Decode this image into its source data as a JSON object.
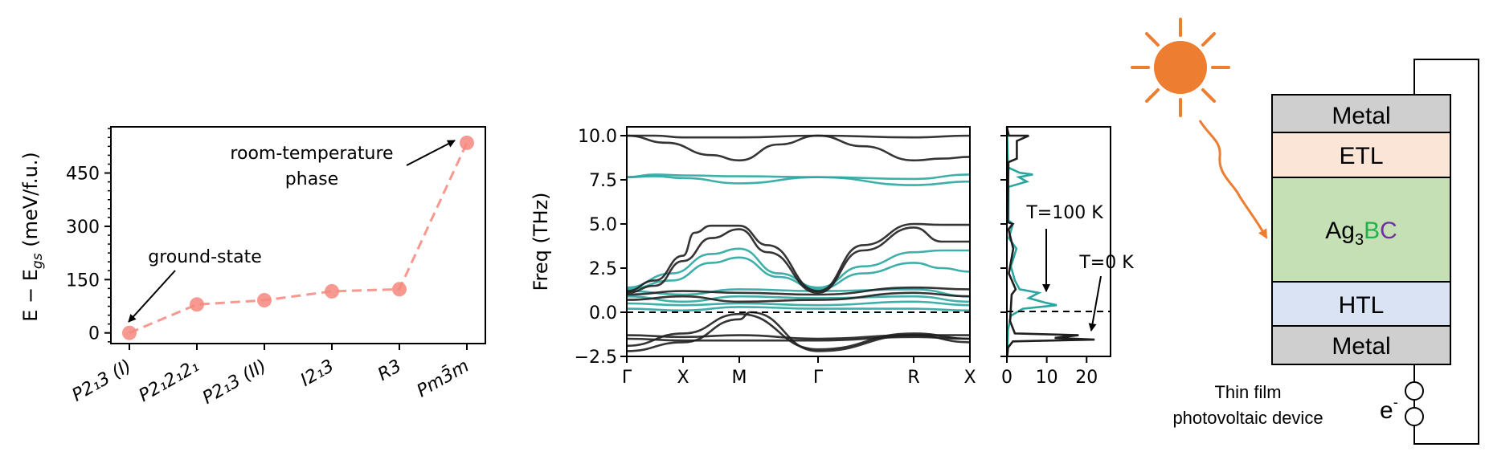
{
  "chart_data": [
    {
      "type": "line",
      "categories": [
        "P2₁3 (I)",
        "P2₁2₁2₁",
        "P2₁3 (II)",
        "I2₁3",
        "R3",
        "Pm3̄m"
      ],
      "values": [
        0,
        80,
        92,
        117,
        123,
        535
      ],
      "ylabel": "E − E_gs (meV/f.u.)",
      "ylabel_parts": {
        "main": "E − E",
        "sub": "gs",
        "unit": " (meV/f.u.)"
      },
      "ylim": [
        -30,
        580
      ],
      "yticks": [
        "0",
        "150",
        "300",
        "450"
      ],
      "ytick_values": [
        0,
        150,
        300,
        450
      ],
      "line_color": "#f4877c",
      "annotations": [
        {
          "text": "ground-state"
        },
        {
          "text_lines": [
            "room-temperature",
            "phase"
          ]
        }
      ]
    },
    {
      "type": "line",
      "ylabel": "Freq (THz)",
      "ylim": [
        -2.5,
        10.5
      ],
      "yticks": [
        "−2.5",
        "0.0",
        "2.5",
        "5.0",
        "7.5",
        "10.0"
      ],
      "ytick_values": [
        -2.5,
        0,
        2.5,
        5,
        7.5,
        10
      ],
      "xticks": [
        "Γ",
        "X",
        "M",
        "Γ",
        "R",
        "X"
      ],
      "xtick_positions": [
        0,
        1,
        2,
        3.4,
        5.1,
        6.1
      ],
      "colors": {
        "T=0 K": "#1f1f1f",
        "T=100 K": "#2aa6a0"
      },
      "series": [
        {
          "temp": "T=100 K",
          "values": [
            [
              0,
              7.65
            ],
            [
              0.5,
              7.8
            ],
            [
              1,
              7.75
            ],
            [
              2,
              7.7
            ],
            [
              3.4,
              7.65
            ],
            [
              5.1,
              7.55
            ],
            [
              6.1,
              7.8
            ]
          ]
        },
        {
          "temp": "T=100 K",
          "values": [
            [
              0,
              7.65
            ],
            [
              0.5,
              7.7
            ],
            [
              1,
              7.6
            ],
            [
              2,
              7.3
            ],
            [
              3.4,
              7.65
            ],
            [
              5.1,
              7.2
            ],
            [
              6.1,
              7.4
            ]
          ]
        },
        {
          "temp": "T=100 K",
          "values": [
            [
              0,
              1.4
            ],
            [
              0.8,
              2.2
            ],
            [
              1.5,
              3.3
            ],
            [
              2,
              3.6
            ],
            [
              2.7,
              2.2
            ],
            [
              3.4,
              1.4
            ],
            [
              4.2,
              2.6
            ],
            [
              5.1,
              3.4
            ],
            [
              5.6,
              3.5
            ],
            [
              6.1,
              3.5
            ]
          ]
        },
        {
          "temp": "T=100 K",
          "values": [
            [
              0,
              1.3
            ],
            [
              0.8,
              1.8
            ],
            [
              1.5,
              2.8
            ],
            [
              2,
              3.1
            ],
            [
              2.7,
              2.0
            ],
            [
              3.4,
              1.3
            ],
            [
              4.2,
              2.2
            ],
            [
              5.1,
              2.8
            ],
            [
              5.6,
              2.5
            ],
            [
              6.1,
              2.3
            ]
          ]
        },
        {
          "temp": "T=100 K",
          "values": [
            [
              0,
              1.2
            ],
            [
              1,
              1.0
            ],
            [
              2,
              1.3
            ],
            [
              3.4,
              1.2
            ],
            [
              5.1,
              1.3
            ],
            [
              6.1,
              0.9
            ]
          ]
        },
        {
          "temp": "T=100 K",
          "values": [
            [
              0,
              0.9
            ],
            [
              1,
              0.6
            ],
            [
              2,
              0.9
            ],
            [
              3.4,
              0.8
            ],
            [
              5.1,
              0.9
            ],
            [
              6.1,
              0.6
            ]
          ]
        },
        {
          "temp": "T=100 K",
          "values": [
            [
              0,
              0.5
            ],
            [
              1,
              0.4
            ],
            [
              2,
              0.5
            ],
            [
              3.4,
              0.4
            ],
            [
              5.1,
              0.6
            ],
            [
              6.1,
              0.4
            ]
          ]
        },
        {
          "temp": "T=100 K",
          "values": [
            [
              0,
              0.2
            ],
            [
              1,
              0.1
            ],
            [
              2,
              0.3
            ],
            [
              3.4,
              0.2
            ],
            [
              5.1,
              0.2
            ],
            [
              6.1,
              0.1
            ]
          ]
        },
        {
          "temp": "T=0 K",
          "values": [
            [
              0,
              10.0
            ],
            [
              0.5,
              10.0
            ],
            [
              1,
              9.9
            ],
            [
              2,
              9.9
            ],
            [
              3.4,
              10.0
            ],
            [
              5.1,
              9.9
            ],
            [
              6.1,
              10.0
            ]
          ]
        },
        {
          "temp": "T=0 K",
          "values": [
            [
              0,
              10.0
            ],
            [
              0.7,
              9.6
            ],
            [
              1.5,
              8.9
            ],
            [
              2,
              8.6
            ],
            [
              2.7,
              9.5
            ],
            [
              3.4,
              10.0
            ],
            [
              4.2,
              9.4
            ],
            [
              5.1,
              8.6
            ],
            [
              5.6,
              8.7
            ],
            [
              6.1,
              8.8
            ]
          ]
        },
        {
          "temp": "T=0 K",
          "values": [
            [
              0,
              1.2
            ],
            [
              0.5,
              1.8
            ],
            [
              1,
              3.2
            ],
            [
              1.2,
              4.5
            ],
            [
              1.5,
              4.9
            ],
            [
              2,
              4.9
            ],
            [
              2.5,
              3.8
            ],
            [
              3.4,
              1.2
            ],
            [
              4.2,
              3.8
            ],
            [
              5.1,
              5.0
            ],
            [
              5.6,
              4.95
            ],
            [
              6.1,
              4.95
            ]
          ]
        },
        {
          "temp": "T=0 K",
          "values": [
            [
              0,
              1.1
            ],
            [
              0.5,
              1.5
            ],
            [
              1,
              2.9
            ],
            [
              1.5,
              4.2
            ],
            [
              2,
              4.7
            ],
            [
              2.5,
              3.4
            ],
            [
              3.4,
              1.1
            ],
            [
              4.2,
              3.5
            ],
            [
              5.1,
              4.8
            ],
            [
              5.6,
              4.0
            ],
            [
              6.1,
              4.0
            ]
          ]
        },
        {
          "temp": "T=0 K",
          "values": [
            [
              0,
              1.0
            ],
            [
              1,
              1.2
            ],
            [
              2,
              1.1
            ],
            [
              3.4,
              1.0
            ],
            [
              5.1,
              1.4
            ],
            [
              6.1,
              1.3
            ]
          ]
        },
        {
          "temp": "T=0 K",
          "values": [
            [
              0,
              0.7
            ],
            [
              1,
              0.9
            ],
            [
              2,
              0.6
            ],
            [
              3.4,
              0.7
            ],
            [
              5.1,
              1.1
            ],
            [
              6.1,
              0.9
            ]
          ]
        },
        {
          "temp": "T=0 K",
          "values": [
            [
              0,
              -1.3
            ],
            [
              1,
              -1.4
            ],
            [
              2,
              -1.3
            ],
            [
              3.4,
              -1.5
            ],
            [
              5.1,
              -1.3
            ],
            [
              6.1,
              -1.3
            ]
          ]
        },
        {
          "temp": "T=0 K",
          "values": [
            [
              0,
              -1.5
            ],
            [
              1,
              -1.6
            ],
            [
              2,
              -1.6
            ],
            [
              3.4,
              -1.6
            ],
            [
              5.1,
              -1.4
            ],
            [
              6.1,
              -1.5
            ]
          ]
        },
        {
          "temp": "T=0 K",
          "values": [
            [
              0,
              -2.2
            ],
            [
              1,
              -1.7
            ],
            [
              2,
              -0.4
            ],
            [
              2.2,
              0.0
            ],
            [
              3.4,
              -2.2
            ],
            [
              5.1,
              -1.3
            ],
            [
              6.1,
              -1.7
            ]
          ]
        },
        {
          "temp": "T=0 K",
          "values": [
            [
              0,
              -1.9
            ],
            [
              1,
              -1.2
            ],
            [
              2,
              -0.1
            ],
            [
              3.4,
              -2.1
            ],
            [
              5.1,
              -1.2
            ],
            [
              6.1,
              -1.5
            ]
          ]
        }
      ]
    },
    {
      "type": "line",
      "xticks": [
        "0",
        "10",
        "20"
      ],
      "xtick_values": [
        0,
        10,
        20
      ],
      "xlim": [
        0,
        26
      ],
      "ylim": [
        -2.5,
        10.5
      ],
      "annotations": [
        {
          "text": "T=100 K"
        },
        {
          "text": "T=0 K"
        }
      ],
      "series": [
        {
          "temp": "T=100 K",
          "values": [
            [
              0,
              10.5
            ],
            [
              0.3,
              8.2
            ],
            [
              3.2,
              7.9
            ],
            [
              6.5,
              7.8
            ],
            [
              3.0,
              7.65
            ],
            [
              5.0,
              7.4
            ],
            [
              0.4,
              7.1
            ],
            [
              0.4,
              5.2
            ],
            [
              1.5,
              5.0
            ],
            [
              0.5,
              4.2
            ],
            [
              2.4,
              3.6
            ],
            [
              1.0,
              2.6
            ],
            [
              2.0,
              1.8
            ],
            [
              3.2,
              1.3
            ],
            [
              8,
              1.1
            ],
            [
              5.5,
              0.8
            ],
            [
              9.5,
              0.55
            ],
            [
              12.5,
              0.4
            ],
            [
              4.0,
              0.2
            ],
            [
              1.0,
              -0.2
            ],
            [
              0.3,
              -1.0
            ],
            [
              0.1,
              -2.5
            ]
          ]
        },
        {
          "temp": "T=0 K",
          "values": [
            [
              0,
              10.5
            ],
            [
              0.5,
              10.0
            ],
            [
              5.5,
              10.0
            ],
            [
              2.5,
              9.7
            ],
            [
              2.5,
              8.7
            ],
            [
              0.4,
              8.5
            ],
            [
              0.2,
              5.1
            ],
            [
              1.5,
              5.0
            ],
            [
              0.4,
              4.7
            ],
            [
              1.6,
              3.6
            ],
            [
              0.5,
              2.2
            ],
            [
              2.2,
              1.3
            ],
            [
              1.2,
              1.0
            ],
            [
              0.8,
              -0.5
            ],
            [
              2.0,
              -1.2
            ],
            [
              18,
              -1.3
            ],
            [
              12,
              -1.45
            ],
            [
              22,
              -1.55
            ],
            [
              1.5,
              -1.65
            ],
            [
              0.3,
              -2.0
            ],
            [
              0.1,
              -2.5
            ]
          ]
        }
      ]
    }
  ],
  "device": {
    "layers": [
      "Metal",
      "ETL",
      "",
      "HTL",
      "Metal"
    ],
    "absorber": {
      "a": "Ag",
      "sub": "3",
      "b": "B",
      "c": "C"
    },
    "caption": [
      "Thin film",
      "photovoltaic device"
    ],
    "electron": {
      "e": "e",
      "sup": "-"
    },
    "colors": {
      "metal": "#cfcfcf",
      "etl": "#fbe5d6",
      "absorber": "#c5e0b4",
      "htl": "#dae3f3",
      "sun": "#ed7d31",
      "b": "#22b14c",
      "c": "#7030a0"
    }
  }
}
